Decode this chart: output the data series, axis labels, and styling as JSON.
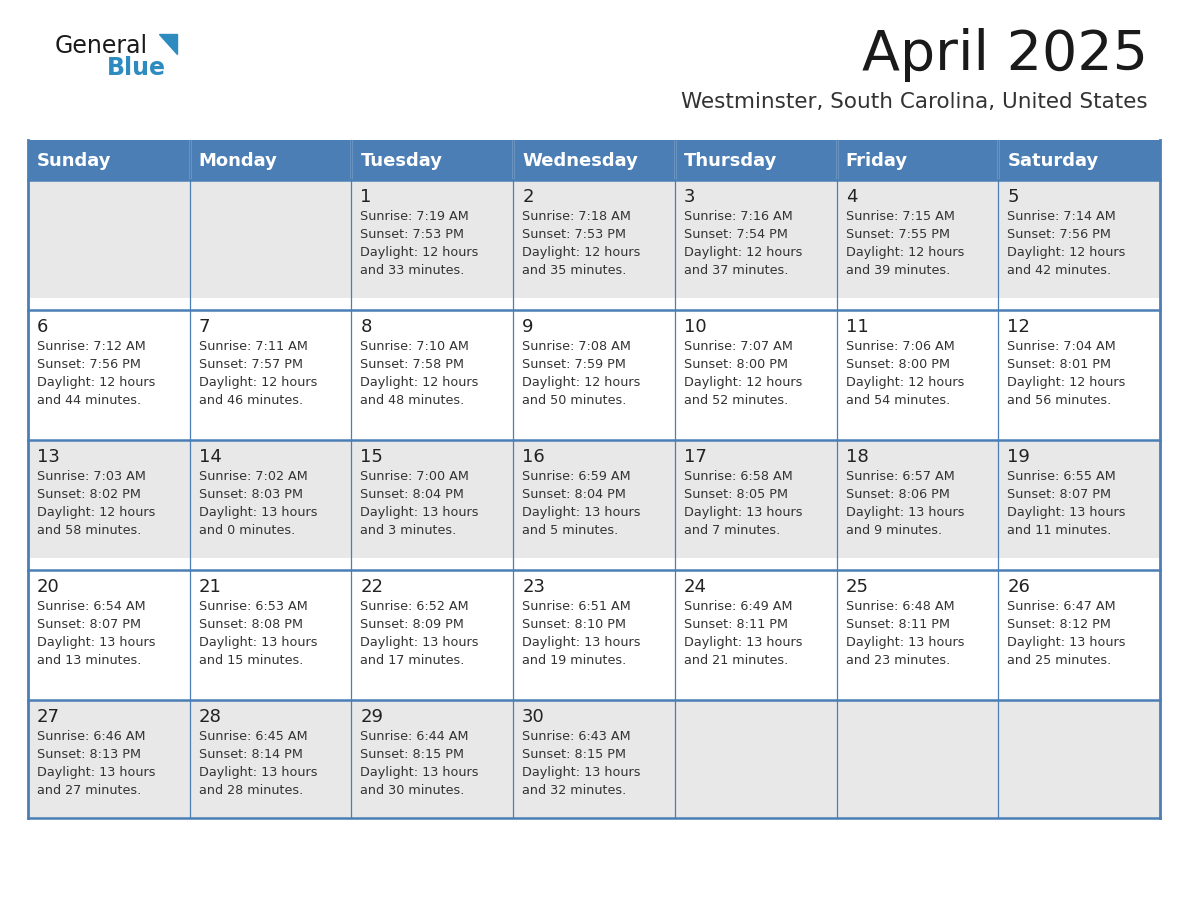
{
  "title": "April 2025",
  "subtitle": "Westminster, South Carolina, United States",
  "days_of_week": [
    "Sunday",
    "Monday",
    "Tuesday",
    "Wednesday",
    "Thursday",
    "Friday",
    "Saturday"
  ],
  "header_bg": "#4a7eb5",
  "header_text_color": "#ffffff",
  "row_bg_odd": "#e8e8e8",
  "row_bg_even": "#ffffff",
  "cell_text_color": "#333333",
  "day_num_color": "#222222",
  "border_color": "#4a7eb5",
  "title_color": "#1a1a1a",
  "subtitle_color": "#333333",
  "general_text_color": "#1a1a1a",
  "blue_text_color": "#2e8bc0",
  "calendar": [
    [
      {
        "day": "",
        "sunrise": "",
        "sunset": "",
        "daylight": ""
      },
      {
        "day": "",
        "sunrise": "",
        "sunset": "",
        "daylight": ""
      },
      {
        "day": "1",
        "sunrise": "Sunrise: 7:19 AM",
        "sunset": "Sunset: 7:53 PM",
        "daylight": "Daylight: 12 hours\nand 33 minutes."
      },
      {
        "day": "2",
        "sunrise": "Sunrise: 7:18 AM",
        "sunset": "Sunset: 7:53 PM",
        "daylight": "Daylight: 12 hours\nand 35 minutes."
      },
      {
        "day": "3",
        "sunrise": "Sunrise: 7:16 AM",
        "sunset": "Sunset: 7:54 PM",
        "daylight": "Daylight: 12 hours\nand 37 minutes."
      },
      {
        "day": "4",
        "sunrise": "Sunrise: 7:15 AM",
        "sunset": "Sunset: 7:55 PM",
        "daylight": "Daylight: 12 hours\nand 39 minutes."
      },
      {
        "day": "5",
        "sunrise": "Sunrise: 7:14 AM",
        "sunset": "Sunset: 7:56 PM",
        "daylight": "Daylight: 12 hours\nand 42 minutes."
      }
    ],
    [
      {
        "day": "6",
        "sunrise": "Sunrise: 7:12 AM",
        "sunset": "Sunset: 7:56 PM",
        "daylight": "Daylight: 12 hours\nand 44 minutes."
      },
      {
        "day": "7",
        "sunrise": "Sunrise: 7:11 AM",
        "sunset": "Sunset: 7:57 PM",
        "daylight": "Daylight: 12 hours\nand 46 minutes."
      },
      {
        "day": "8",
        "sunrise": "Sunrise: 7:10 AM",
        "sunset": "Sunset: 7:58 PM",
        "daylight": "Daylight: 12 hours\nand 48 minutes."
      },
      {
        "day": "9",
        "sunrise": "Sunrise: 7:08 AM",
        "sunset": "Sunset: 7:59 PM",
        "daylight": "Daylight: 12 hours\nand 50 minutes."
      },
      {
        "day": "10",
        "sunrise": "Sunrise: 7:07 AM",
        "sunset": "Sunset: 8:00 PM",
        "daylight": "Daylight: 12 hours\nand 52 minutes."
      },
      {
        "day": "11",
        "sunrise": "Sunrise: 7:06 AM",
        "sunset": "Sunset: 8:00 PM",
        "daylight": "Daylight: 12 hours\nand 54 minutes."
      },
      {
        "day": "12",
        "sunrise": "Sunrise: 7:04 AM",
        "sunset": "Sunset: 8:01 PM",
        "daylight": "Daylight: 12 hours\nand 56 minutes."
      }
    ],
    [
      {
        "day": "13",
        "sunrise": "Sunrise: 7:03 AM",
        "sunset": "Sunset: 8:02 PM",
        "daylight": "Daylight: 12 hours\nand 58 minutes."
      },
      {
        "day": "14",
        "sunrise": "Sunrise: 7:02 AM",
        "sunset": "Sunset: 8:03 PM",
        "daylight": "Daylight: 13 hours\nand 0 minutes."
      },
      {
        "day": "15",
        "sunrise": "Sunrise: 7:00 AM",
        "sunset": "Sunset: 8:04 PM",
        "daylight": "Daylight: 13 hours\nand 3 minutes."
      },
      {
        "day": "16",
        "sunrise": "Sunrise: 6:59 AM",
        "sunset": "Sunset: 8:04 PM",
        "daylight": "Daylight: 13 hours\nand 5 minutes."
      },
      {
        "day": "17",
        "sunrise": "Sunrise: 6:58 AM",
        "sunset": "Sunset: 8:05 PM",
        "daylight": "Daylight: 13 hours\nand 7 minutes."
      },
      {
        "day": "18",
        "sunrise": "Sunrise: 6:57 AM",
        "sunset": "Sunset: 8:06 PM",
        "daylight": "Daylight: 13 hours\nand 9 minutes."
      },
      {
        "day": "19",
        "sunrise": "Sunrise: 6:55 AM",
        "sunset": "Sunset: 8:07 PM",
        "daylight": "Daylight: 13 hours\nand 11 minutes."
      }
    ],
    [
      {
        "day": "20",
        "sunrise": "Sunrise: 6:54 AM",
        "sunset": "Sunset: 8:07 PM",
        "daylight": "Daylight: 13 hours\nand 13 minutes."
      },
      {
        "day": "21",
        "sunrise": "Sunrise: 6:53 AM",
        "sunset": "Sunset: 8:08 PM",
        "daylight": "Daylight: 13 hours\nand 15 minutes."
      },
      {
        "day": "22",
        "sunrise": "Sunrise: 6:52 AM",
        "sunset": "Sunset: 8:09 PM",
        "daylight": "Daylight: 13 hours\nand 17 minutes."
      },
      {
        "day": "23",
        "sunrise": "Sunrise: 6:51 AM",
        "sunset": "Sunset: 8:10 PM",
        "daylight": "Daylight: 13 hours\nand 19 minutes."
      },
      {
        "day": "24",
        "sunrise": "Sunrise: 6:49 AM",
        "sunset": "Sunset: 8:11 PM",
        "daylight": "Daylight: 13 hours\nand 21 minutes."
      },
      {
        "day": "25",
        "sunrise": "Sunrise: 6:48 AM",
        "sunset": "Sunset: 8:11 PM",
        "daylight": "Daylight: 13 hours\nand 23 minutes."
      },
      {
        "day": "26",
        "sunrise": "Sunrise: 6:47 AM",
        "sunset": "Sunset: 8:12 PM",
        "daylight": "Daylight: 13 hours\nand 25 minutes."
      }
    ],
    [
      {
        "day": "27",
        "sunrise": "Sunrise: 6:46 AM",
        "sunset": "Sunset: 8:13 PM",
        "daylight": "Daylight: 13 hours\nand 27 minutes."
      },
      {
        "day": "28",
        "sunrise": "Sunrise: 6:45 AM",
        "sunset": "Sunset: 8:14 PM",
        "daylight": "Daylight: 13 hours\nand 28 minutes."
      },
      {
        "day": "29",
        "sunrise": "Sunrise: 6:44 AM",
        "sunset": "Sunset: 8:15 PM",
        "daylight": "Daylight: 13 hours\nand 30 minutes."
      },
      {
        "day": "30",
        "sunrise": "Sunrise: 6:43 AM",
        "sunset": "Sunset: 8:15 PM",
        "daylight": "Daylight: 13 hours\nand 32 minutes."
      },
      {
        "day": "",
        "sunrise": "",
        "sunset": "",
        "daylight": ""
      },
      {
        "day": "",
        "sunrise": "",
        "sunset": "",
        "daylight": ""
      },
      {
        "day": "",
        "sunrise": "",
        "sunset": "",
        "daylight": ""
      }
    ]
  ],
  "figsize": [
    11.88,
    9.18
  ],
  "dpi": 100
}
